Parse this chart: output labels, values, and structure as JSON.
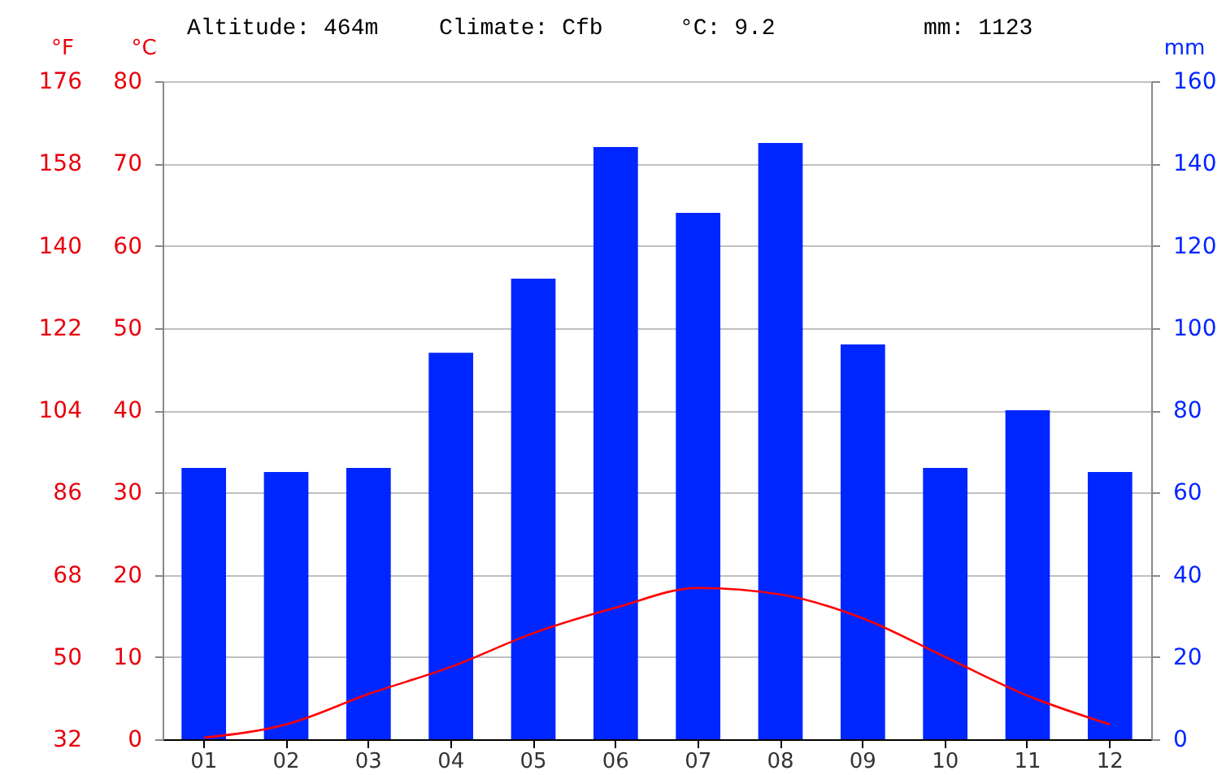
{
  "chart_data": {
    "type": "bar",
    "annotations": [
      "Altitude: 464m",
      "Climate: Cfb",
      "°C: 9.2",
      "mm: 1123"
    ],
    "categories": [
      "01",
      "02",
      "03",
      "04",
      "05",
      "06",
      "07",
      "08",
      "09",
      "10",
      "11",
      "12"
    ],
    "series": [
      {
        "axis": "y2",
        "color": "#0026ff",
        "values": [
          66,
          65,
          66,
          94,
          112,
          144,
          128,
          145,
          96,
          66,
          80,
          65
        ]
      },
      {
        "type": "line",
        "axis": "y",
        "color": "#ff0000",
        "values": [
          0.2,
          1.8,
          5.5,
          8.8,
          12.9,
          16.0,
          18.4,
          17.6,
          14.7,
          10.0,
          5.3,
          1.8
        ]
      }
    ],
    "ylabel": "°C",
    "ylim": [
      0,
      80
    ],
    "yticks": [
      0,
      10,
      20,
      30,
      40,
      50,
      60,
      70,
      80
    ],
    "y2label": "mm",
    "y2lim": [
      0,
      160
    ],
    "y2ticks": [
      0,
      20,
      40,
      60,
      80,
      100,
      120,
      140,
      160
    ],
    "y3label": "°F",
    "y3lim": [
      32,
      176
    ],
    "y3ticks": [
      32,
      50,
      68,
      86,
      104,
      122,
      140,
      158,
      176
    ],
    "grid": "y",
    "marker": "none",
    "line_style": "solid"
  }
}
